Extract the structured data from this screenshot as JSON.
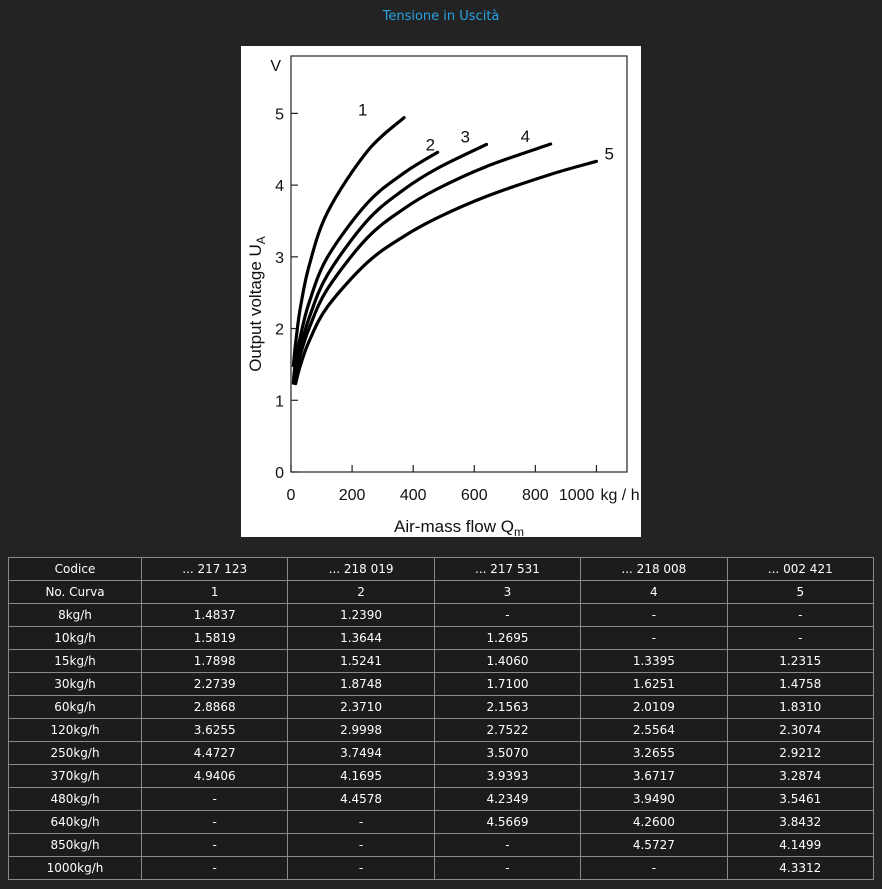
{
  "page": {
    "title": "Tensione in Uscità"
  },
  "chart_data": {
    "type": "line",
    "title": "",
    "xlabel": "Air-mass flow Q",
    "xlabel_sub": "m",
    "ylabel": "Output voltage U",
    "ylabel_sub": "A",
    "y_unit": "V",
    "x_unit": "kg / h",
    "xlim": [
      0,
      1100
    ],
    "ylim": [
      0,
      5.8
    ],
    "x_ticks": [
      0,
      200,
      400,
      600,
      800,
      1000
    ],
    "y_ticks": [
      0,
      1,
      2,
      3,
      4,
      5
    ],
    "x_tick_labels": [
      "0",
      "200",
      "400",
      "600",
      "800",
      "1000"
    ],
    "y_tick_labels": [
      "0",
      "1",
      "2",
      "3",
      "4",
      "5"
    ],
    "grid": false,
    "series": [
      {
        "name": "1",
        "x": [
          8,
          10,
          15,
          30,
          60,
          120,
          250,
          370
        ],
        "values": [
          1.4837,
          1.5819,
          1.7898,
          2.2739,
          2.8868,
          3.6255,
          4.4727,
          4.9406
        ]
      },
      {
        "name": "2",
        "x": [
          8,
          10,
          15,
          30,
          60,
          120,
          250,
          370,
          480
        ],
        "values": [
          1.239,
          1.3644,
          1.5241,
          1.8748,
          2.371,
          2.9998,
          3.7494,
          4.1695,
          4.4578
        ]
      },
      {
        "name": "3",
        "x": [
          10,
          15,
          30,
          60,
          120,
          250,
          370,
          480,
          640
        ],
        "values": [
          1.2695,
          1.406,
          1.71,
          2.1563,
          2.7522,
          3.507,
          3.9393,
          4.2349,
          4.5669
        ]
      },
      {
        "name": "4",
        "x": [
          15,
          30,
          60,
          120,
          250,
          370,
          480,
          640,
          850
        ],
        "values": [
          1.3395,
          1.6251,
          2.0109,
          2.5564,
          3.2655,
          3.6717,
          3.949,
          4.26,
          4.5727
        ]
      },
      {
        "name": "5",
        "x": [
          15,
          30,
          60,
          120,
          250,
          370,
          480,
          640,
          850,
          1000
        ],
        "values": [
          1.2315,
          1.4758,
          1.831,
          2.3074,
          2.9212,
          3.2874,
          3.5461,
          3.8432,
          4.1499,
          4.3312
        ]
      }
    ]
  },
  "table": {
    "rows": [
      [
        "Codice",
        "... 217 123",
        "... 218 019",
        "... 217 531",
        "... 218 008",
        "... 002 421"
      ],
      [
        "No. Curva",
        "1",
        "2",
        "3",
        "4",
        "5"
      ],
      [
        "8kg/h",
        "1.4837",
        "1.2390",
        "-",
        "-",
        "-"
      ],
      [
        "10kg/h",
        "1.5819",
        "1.3644",
        "1.2695",
        "-",
        "-"
      ],
      [
        "15kg/h",
        "1.7898",
        "1.5241",
        "1.4060",
        "1.3395",
        "1.2315"
      ],
      [
        "30kg/h",
        "2.2739",
        "1.8748",
        "1.7100",
        "1.6251",
        "1.4758"
      ],
      [
        "60kg/h",
        "2.8868",
        "2.3710",
        "2.1563",
        "2.0109",
        "1.8310"
      ],
      [
        "120kg/h",
        "3.6255",
        "2.9998",
        "2.7522",
        "2.5564",
        "2.3074"
      ],
      [
        "250kg/h",
        "4.4727",
        "3.7494",
        "3.5070",
        "3.2655",
        "2.9212"
      ],
      [
        "370kg/h",
        "4.9406",
        "4.1695",
        "3.9393",
        "3.6717",
        "3.2874"
      ],
      [
        "480kg/h",
        "-",
        "4.4578",
        "4.2349",
        "3.9490",
        "3.5461"
      ],
      [
        "640kg/h",
        "-",
        "-",
        "4.5669",
        "4.2600",
        "3.8432"
      ],
      [
        "850kg/h",
        "-",
        "-",
        "-",
        "4.5727",
        "4.1499"
      ],
      [
        "1000kg/h",
        "-",
        "-",
        "-",
        "-",
        "4.3312"
      ]
    ]
  }
}
